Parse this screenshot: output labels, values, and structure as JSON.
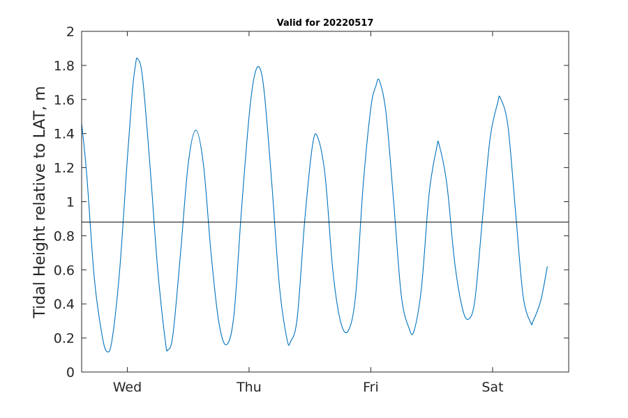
{
  "chart_data": {
    "type": "line",
    "title": "Valid for 20220517",
    "xlabel": "",
    "ylabel": "Tidal Height relative to LAT, m",
    "ylim": [
      0,
      2
    ],
    "xlim_hours": [
      -9,
      87
    ],
    "y_ticks": [
      "0",
      "0.2",
      "0.4",
      "0.6",
      "0.8",
      "1",
      "1.2",
      "1.4",
      "1.6",
      "1.8",
      "2"
    ],
    "x_ticks": [
      {
        "label": "Wed",
        "hour": 0
      },
      {
        "label": "Thu",
        "hour": 24
      },
      {
        "label": "Fri",
        "hour": 48
      },
      {
        "label": "Sat",
        "hour": 72
      }
    ],
    "grid": false,
    "reference_line": {
      "y": 0.88
    },
    "series": [
      {
        "color": "#0072bd",
        "points": [
          [
            -9.0,
            1.46
          ],
          [
            -8.0,
            1.16
          ],
          [
            -6.5,
            0.55
          ],
          [
            -5.0,
            0.22
          ],
          [
            -4.0,
            0.12
          ],
          [
            -3.0,
            0.19
          ],
          [
            -1.5,
            0.6
          ],
          [
            0.0,
            1.25
          ],
          [
            1.0,
            1.65
          ],
          [
            1.6,
            1.8
          ],
          [
            2.0,
            1.84
          ],
          [
            3.0,
            1.73
          ],
          [
            4.5,
            1.2
          ],
          [
            6.0,
            0.6
          ],
          [
            7.5,
            0.18
          ],
          [
            8.0,
            0.13
          ],
          [
            9.0,
            0.22
          ],
          [
            10.5,
            0.7
          ],
          [
            12.0,
            1.22
          ],
          [
            13.5,
            1.42
          ],
          [
            15.0,
            1.22
          ],
          [
            16.5,
            0.7
          ],
          [
            18.0,
            0.3
          ],
          [
            19.5,
            0.16
          ],
          [
            21.0,
            0.33
          ],
          [
            22.5,
            0.95
          ],
          [
            24.0,
            1.5
          ],
          [
            25.0,
            1.73
          ],
          [
            26.0,
            1.79
          ],
          [
            27.0,
            1.64
          ],
          [
            28.5,
            1.1
          ],
          [
            30.0,
            0.5
          ],
          [
            31.5,
            0.19
          ],
          [
            32.2,
            0.18
          ],
          [
            33.5,
            0.32
          ],
          [
            35.0,
            0.9
          ],
          [
            36.5,
            1.33
          ],
          [
            37.5,
            1.38
          ],
          [
            39.0,
            1.15
          ],
          [
            40.5,
            0.6
          ],
          [
            42.0,
            0.3
          ],
          [
            43.5,
            0.24
          ],
          [
            45.0,
            0.45
          ],
          [
            46.5,
            1.1
          ],
          [
            48.0,
            1.55
          ],
          [
            49.0,
            1.68
          ],
          [
            49.7,
            1.71
          ],
          [
            51.0,
            1.52
          ],
          [
            52.5,
            1.0
          ],
          [
            54.0,
            0.45
          ],
          [
            55.5,
            0.26
          ],
          [
            56.5,
            0.24
          ],
          [
            58.0,
            0.5
          ],
          [
            59.5,
            1.05
          ],
          [
            61.0,
            1.32
          ],
          [
            61.5,
            1.33
          ],
          [
            63.0,
            1.1
          ],
          [
            64.5,
            0.65
          ],
          [
            66.0,
            0.38
          ],
          [
            67.2,
            0.31
          ],
          [
            68.5,
            0.42
          ],
          [
            70.0,
            0.9
          ],
          [
            71.5,
            1.37
          ],
          [
            73.0,
            1.58
          ],
          [
            73.5,
            1.61
          ],
          [
            75.0,
            1.45
          ],
          [
            76.5,
            0.95
          ],
          [
            78.0,
            0.45
          ],
          [
            79.5,
            0.29
          ],
          [
            80.0,
            0.3
          ],
          [
            81.5,
            0.42
          ],
          [
            82.8,
            0.62
          ]
        ]
      }
    ]
  }
}
